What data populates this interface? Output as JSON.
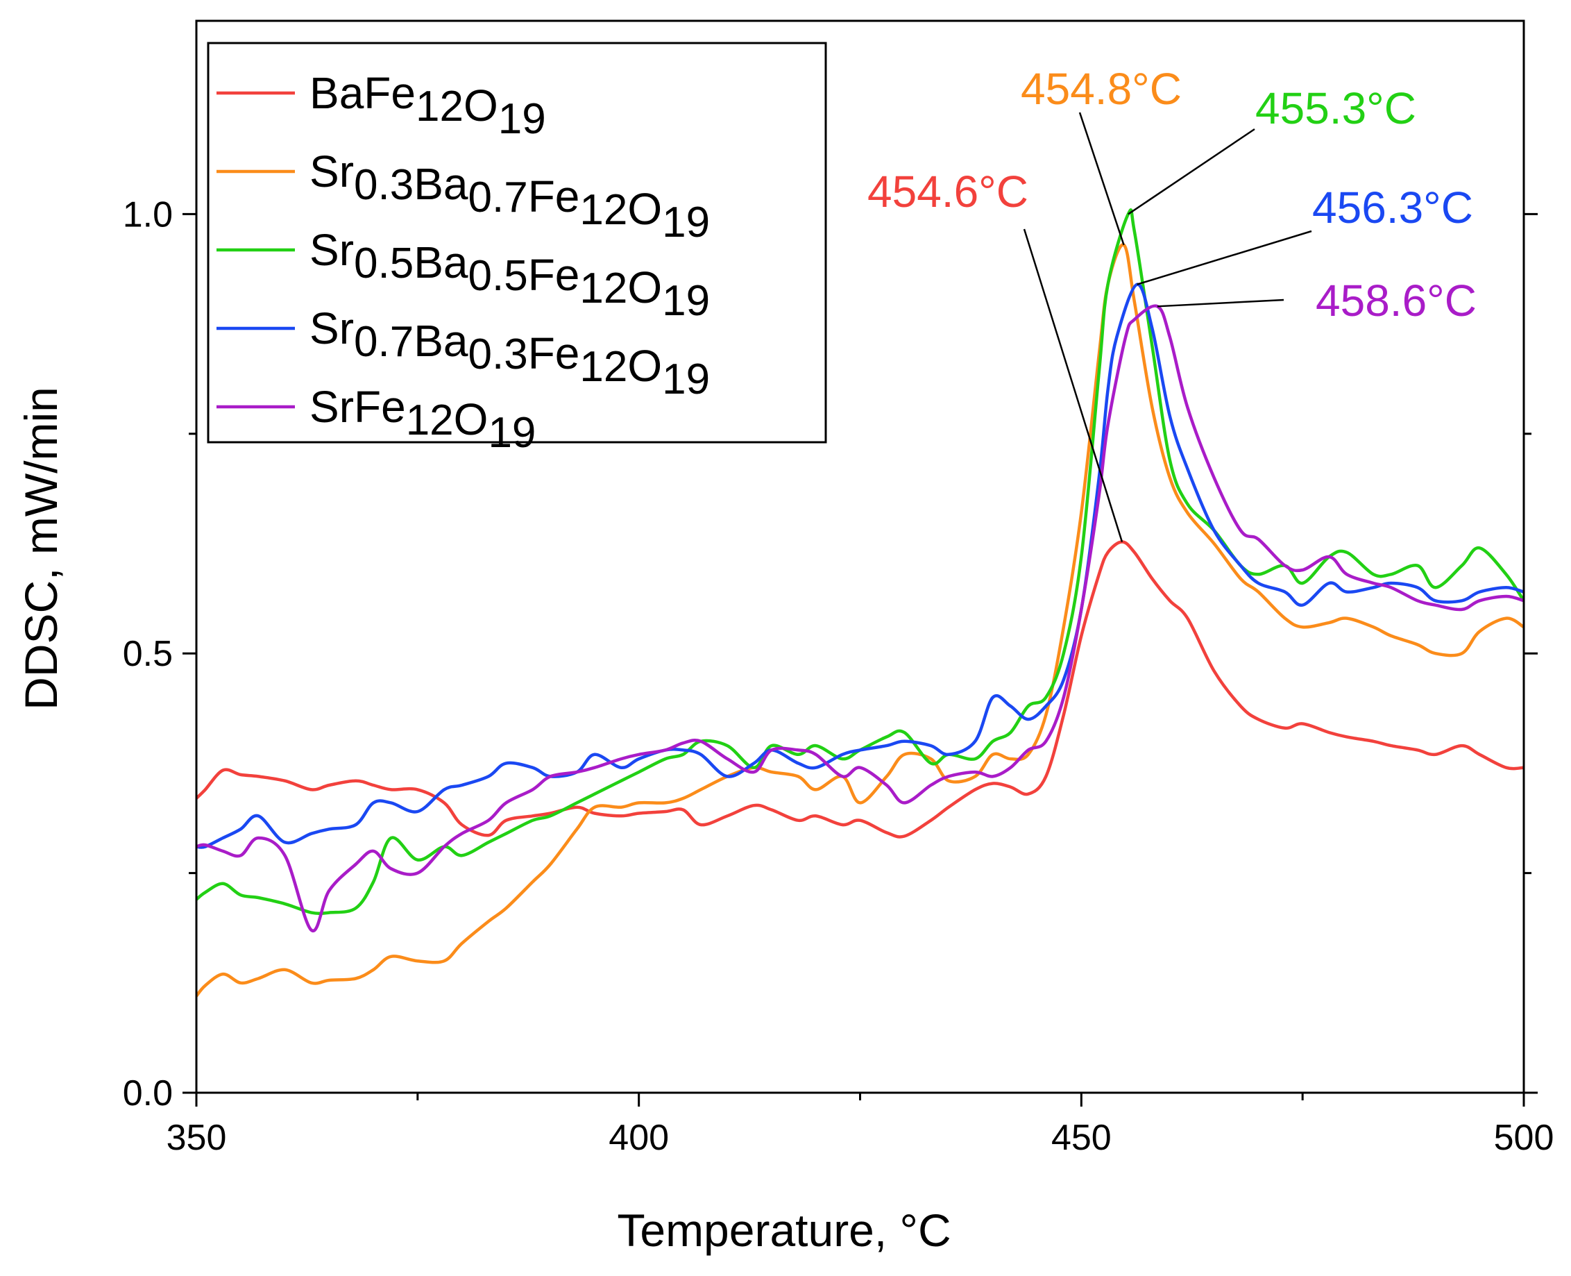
{
  "chart_data": {
    "type": "line",
    "xlabel": "Temperature, °C",
    "ylabel": "DDSC, mW/min",
    "xlim": [
      350,
      500
    ],
    "ylim": [
      0.0,
      1.22
    ],
    "x_ticks": [
      350,
      400,
      450,
      500
    ],
    "x_tick_labels": [
      "350",
      "400",
      "450",
      "500"
    ],
    "y_ticks": [
      0.0,
      0.5,
      1.0
    ],
    "y_tick_labels": [
      "0.0",
      "0.5",
      "1.0"
    ],
    "grid": false,
    "legend_position": "top-left",
    "series": [
      {
        "name": "BaFe12O19",
        "legend": {
          "parts": [
            {
              "t": "BaFe",
              "sub": false
            },
            {
              "t": "12",
              "sub": true
            },
            {
              "t": "O",
              "sub": false
            },
            {
              "t": "19",
              "sub": true
            }
          ]
        },
        "color": "#f2413c",
        "x": [
          350,
          351,
          353,
          355,
          357,
          360,
          363,
          365,
          368,
          370,
          372,
          375,
          378,
          380,
          383,
          385,
          388,
          390,
          393,
          395,
          398,
          400,
          403,
          405,
          407,
          410,
          413,
          415,
          418,
          420,
          423,
          425,
          428,
          430,
          433,
          435,
          438,
          440,
          442,
          444,
          446,
          448,
          450,
          452,
          453,
          454.6,
          456,
          458,
          460,
          462,
          465,
          468,
          470,
          473,
          475,
          478,
          480,
          483,
          485,
          488,
          490,
          493,
          495,
          498,
          500
        ],
        "y": [
          0.335,
          0.345,
          0.367,
          0.362,
          0.36,
          0.355,
          0.345,
          0.35,
          0.355,
          0.35,
          0.345,
          0.345,
          0.33,
          0.305,
          0.293,
          0.31,
          0.315,
          0.318,
          0.325,
          0.318,
          0.315,
          0.318,
          0.32,
          0.322,
          0.305,
          0.315,
          0.327,
          0.322,
          0.31,
          0.315,
          0.305,
          0.31,
          0.296,
          0.292,
          0.31,
          0.325,
          0.345,
          0.352,
          0.348,
          0.34,
          0.36,
          0.43,
          0.52,
          0.59,
          0.615,
          0.627,
          0.615,
          0.585,
          0.56,
          0.54,
          0.48,
          0.44,
          0.425,
          0.415,
          0.42,
          0.41,
          0.405,
          0.4,
          0.395,
          0.39,
          0.385,
          0.395,
          0.385,
          0.37,
          0.37
        ]
      },
      {
        "name": "Sr0.3Ba0.7Fe12O19",
        "legend": {
          "parts": [
            {
              "t": "Sr",
              "sub": false
            },
            {
              "t": "0.3",
              "sub": true
            },
            {
              "t": "Ba",
              "sub": false
            },
            {
              "t": "0.7",
              "sub": true
            },
            {
              "t": "Fe",
              "sub": false
            },
            {
              "t": "12",
              "sub": true
            },
            {
              "t": "O",
              "sub": false
            },
            {
              "t": "19",
              "sub": true
            }
          ]
        },
        "color": "#fb8c1a",
        "x": [
          350,
          351,
          353,
          355,
          357,
          360,
          363,
          365,
          368,
          370,
          372,
          375,
          378,
          380,
          383,
          385,
          388,
          390,
          393,
          395,
          398,
          400,
          403,
          405,
          407,
          410,
          413,
          415,
          418,
          420,
          423,
          425,
          428,
          430,
          433,
          435,
          438,
          440,
          442,
          444,
          446,
          448,
          450,
          452,
          453,
          454.8,
          456,
          458,
          460,
          462,
          465,
          468,
          470,
          473,
          475,
          478,
          480,
          483,
          485,
          488,
          490,
          493,
          495,
          498,
          500
        ],
        "y": [
          0.11,
          0.122,
          0.135,
          0.125,
          0.13,
          0.14,
          0.125,
          0.128,
          0.13,
          0.14,
          0.155,
          0.15,
          0.15,
          0.17,
          0.195,
          0.21,
          0.24,
          0.26,
          0.3,
          0.325,
          0.325,
          0.33,
          0.33,
          0.335,
          0.345,
          0.36,
          0.37,
          0.365,
          0.36,
          0.345,
          0.36,
          0.33,
          0.36,
          0.385,
          0.38,
          0.355,
          0.36,
          0.385,
          0.38,
          0.385,
          0.43,
          0.53,
          0.66,
          0.84,
          0.92,
          0.965,
          0.9,
          0.78,
          0.7,
          0.66,
          0.625,
          0.585,
          0.57,
          0.54,
          0.53,
          0.535,
          0.54,
          0.53,
          0.52,
          0.51,
          0.5,
          0.5,
          0.525,
          0.54,
          0.53
        ]
      },
      {
        "name": "Sr0.5Ba0.5Fe12O19",
        "legend": {
          "parts": [
            {
              "t": "Sr",
              "sub": false
            },
            {
              "t": "0.5",
              "sub": true
            },
            {
              "t": "Ba",
              "sub": false
            },
            {
              "t": "0.5",
              "sub": true
            },
            {
              "t": "Fe",
              "sub": false
            },
            {
              "t": "12",
              "sub": true
            },
            {
              "t": "O",
              "sub": false
            },
            {
              "t": "19",
              "sub": true
            }
          ]
        },
        "color": "#22d014",
        "x": [
          350,
          351,
          353,
          355,
          357,
          360,
          363,
          365,
          368,
          370,
          372,
          375,
          378,
          380,
          383,
          385,
          388,
          390,
          393,
          395,
          398,
          400,
          403,
          405,
          407,
          410,
          413,
          415,
          418,
          420,
          423,
          425,
          428,
          430,
          433,
          435,
          438,
          440,
          442,
          444,
          446,
          448,
          450,
          452,
          453,
          455.3,
          456,
          458,
          460,
          462,
          465,
          468,
          470,
          473,
          475,
          478,
          480,
          483,
          485,
          488,
          490,
          493,
          495,
          498,
          500
        ],
        "y": [
          0.22,
          0.228,
          0.238,
          0.225,
          0.222,
          0.215,
          0.205,
          0.205,
          0.21,
          0.24,
          0.29,
          0.265,
          0.28,
          0.27,
          0.285,
          0.295,
          0.31,
          0.315,
          0.33,
          0.34,
          0.355,
          0.365,
          0.38,
          0.385,
          0.4,
          0.395,
          0.37,
          0.395,
          0.385,
          0.395,
          0.38,
          0.39,
          0.405,
          0.41,
          0.375,
          0.385,
          0.38,
          0.4,
          0.41,
          0.44,
          0.45,
          0.5,
          0.61,
          0.82,
          0.92,
          1.0,
          0.98,
          0.85,
          0.72,
          0.67,
          0.64,
          0.6,
          0.59,
          0.6,
          0.58,
          0.61,
          0.615,
          0.59,
          0.59,
          0.6,
          0.575,
          0.6,
          0.62,
          0.59,
          0.56
        ]
      },
      {
        "name": "Sr0.7Ba0.3Fe12O19",
        "legend": {
          "parts": [
            {
              "t": "Sr",
              "sub": false
            },
            {
              "t": "0.7",
              "sub": true
            },
            {
              "t": "Ba",
              "sub": false
            },
            {
              "t": "0.3",
              "sub": true
            },
            {
              "t": "Fe",
              "sub": false
            },
            {
              "t": "12",
              "sub": true
            },
            {
              "t": "O",
              "sub": false
            },
            {
              "t": "19",
              "sub": true
            }
          ]
        },
        "color": "#1a48f2",
        "x": [
          350,
          351,
          353,
          355,
          357,
          360,
          363,
          365,
          368,
          370,
          372,
          375,
          378,
          380,
          383,
          385,
          388,
          390,
          393,
          395,
          398,
          400,
          403,
          405,
          407,
          410,
          413,
          415,
          418,
          420,
          423,
          425,
          428,
          430,
          433,
          435,
          438,
          440,
          442,
          444,
          446,
          448,
          450,
          452,
          453,
          454,
          456.3,
          458,
          460,
          462,
          465,
          468,
          470,
          473,
          475,
          478,
          480,
          483,
          485,
          488,
          490,
          493,
          495,
          498,
          500
        ],
        "y": [
          0.28,
          0.28,
          0.29,
          0.3,
          0.315,
          0.285,
          0.295,
          0.3,
          0.305,
          0.33,
          0.33,
          0.32,
          0.345,
          0.35,
          0.36,
          0.375,
          0.37,
          0.36,
          0.365,
          0.385,
          0.37,
          0.38,
          0.39,
          0.39,
          0.385,
          0.36,
          0.375,
          0.39,
          0.375,
          0.37,
          0.385,
          0.39,
          0.395,
          0.4,
          0.395,
          0.385,
          0.4,
          0.45,
          0.44,
          0.425,
          0.44,
          0.47,
          0.55,
          0.7,
          0.8,
          0.86,
          0.92,
          0.87,
          0.77,
          0.71,
          0.64,
          0.6,
          0.58,
          0.57,
          0.555,
          0.58,
          0.57,
          0.575,
          0.58,
          0.575,
          0.56,
          0.56,
          0.57,
          0.575,
          0.57
        ]
      },
      {
        "name": "SrFe12O19",
        "legend": {
          "parts": [
            {
              "t": "SrFe",
              "sub": false
            },
            {
              "t": "12",
              "sub": true
            },
            {
              "t": "O",
              "sub": false
            },
            {
              "t": "19",
              "sub": true
            }
          ]
        },
        "color": "#a91cc8",
        "x": [
          350,
          351,
          353,
          355,
          357,
          360,
          363,
          365,
          368,
          370,
          372,
          375,
          378,
          380,
          383,
          385,
          388,
          390,
          393,
          395,
          398,
          400,
          403,
          405,
          407,
          410,
          413,
          415,
          418,
          420,
          423,
          425,
          428,
          430,
          433,
          435,
          438,
          440,
          442,
          444,
          446,
          448,
          450,
          452,
          453,
          455,
          456,
          458.6,
          460,
          462,
          465,
          468,
          470,
          473,
          475,
          478,
          480,
          483,
          485,
          488,
          490,
          493,
          495,
          498,
          500
        ],
        "y": [
          0.28,
          0.282,
          0.275,
          0.27,
          0.29,
          0.27,
          0.185,
          0.23,
          0.26,
          0.275,
          0.255,
          0.25,
          0.28,
          0.295,
          0.31,
          0.33,
          0.345,
          0.36,
          0.365,
          0.37,
          0.38,
          0.385,
          0.39,
          0.398,
          0.4,
          0.38,
          0.365,
          0.39,
          0.39,
          0.385,
          0.36,
          0.37,
          0.35,
          0.33,
          0.35,
          0.36,
          0.365,
          0.36,
          0.37,
          0.39,
          0.4,
          0.45,
          0.55,
          0.68,
          0.76,
          0.86,
          0.88,
          0.895,
          0.86,
          0.78,
          0.7,
          0.64,
          0.63,
          0.6,
          0.595,
          0.61,
          0.59,
          0.58,
          0.575,
          0.56,
          0.555,
          0.55,
          0.56,
          0.565,
          0.56
        ]
      }
    ],
    "annotations": [
      {
        "text": "454.8°C",
        "series": 1,
        "x": 454.8,
        "y": 0.965
      },
      {
        "text": "455.3°C",
        "series": 2,
        "x": 455.3,
        "y": 1.0
      },
      {
        "text": "454.6°C",
        "series": 0,
        "x": 454.6,
        "y": 0.627
      },
      {
        "text": "456.3°C",
        "series": 3,
        "x": 456.3,
        "y": 0.92
      },
      {
        "text": "458.6°C",
        "series": 4,
        "x": 458.6,
        "y": 0.895
      }
    ]
  }
}
